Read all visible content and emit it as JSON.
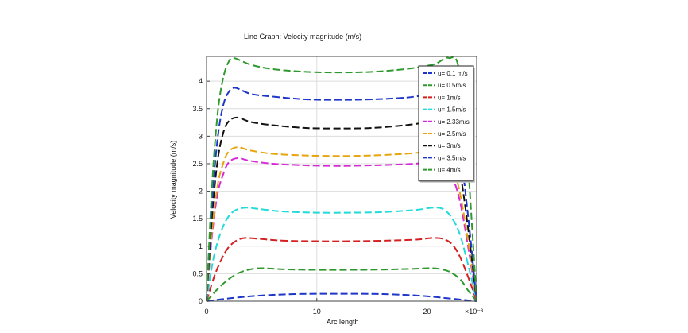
{
  "chart_data": {
    "type": "line",
    "title": "Line Graph: Velocity magnitude (m/s)",
    "xlabel": "Arc length",
    "ylabel": "Velocity magnitude (m/s)",
    "x_ticks": [
      "0",
      "10",
      "20"
    ],
    "x_multiplier": "×10⁻³",
    "y_ticks": [
      "0",
      "0.5",
      "1",
      "1.5",
      "2",
      "2.5",
      "3",
      "3.5",
      "4"
    ],
    "xlim": [
      0,
      0.0245
    ],
    "ylim": [
      0,
      4.45
    ],
    "grid": true,
    "legend_position": "top-right",
    "line_style": "dashed",
    "series": [
      {
        "name": "u= 0.1 m/s",
        "color": "#1f36c8",
        "x": [
          0,
          0.002,
          0.004,
          0.006,
          0.008,
          0.01,
          0.012,
          0.014,
          0.016,
          0.018,
          0.02,
          0.022,
          0.0235,
          0.0245
        ],
        "y": [
          0,
          0.05,
          0.09,
          0.115,
          0.13,
          0.135,
          0.135,
          0.135,
          0.13,
          0.115,
          0.09,
          0.05,
          0.02,
          0
        ]
      },
      {
        "name": "u= 0.5m/s",
        "color": "#2e9a2e",
        "x": [
          0,
          0.001,
          0.002,
          0.003,
          0.004,
          0.005,
          0.007,
          0.01,
          0.013,
          0.016,
          0.019,
          0.02,
          0.021,
          0.022,
          0.023,
          0.0237,
          0.0245
        ],
        "y": [
          0,
          0.22,
          0.4,
          0.52,
          0.58,
          0.6,
          0.58,
          0.57,
          0.57,
          0.575,
          0.59,
          0.6,
          0.59,
          0.54,
          0.4,
          0.2,
          0
        ]
      },
      {
        "name": "u= 1m/s",
        "color": "#d42020",
        "x": [
          0,
          0.0007,
          0.0014,
          0.002,
          0.0027,
          0.0035,
          0.005,
          0.007,
          0.01,
          0.013,
          0.016,
          0.019,
          0.0205,
          0.0215,
          0.0223,
          0.023,
          0.0238,
          0.0245
        ],
        "y": [
          0,
          0.45,
          0.78,
          0.98,
          1.1,
          1.15,
          1.13,
          1.1,
          1.09,
          1.09,
          1.1,
          1.12,
          1.15,
          1.13,
          1.03,
          0.8,
          0.4,
          0
        ]
      },
      {
        "name": "u= 1.5m/s",
        "color": "#22dada",
        "x": [
          0,
          0.0006,
          0.0012,
          0.0018,
          0.0025,
          0.0035,
          0.005,
          0.007,
          0.01,
          0.013,
          0.016,
          0.019,
          0.0205,
          0.0215,
          0.0223,
          0.023,
          0.0238,
          0.0245
        ],
        "y": [
          0,
          0.75,
          1.2,
          1.48,
          1.64,
          1.7,
          1.67,
          1.63,
          1.61,
          1.61,
          1.62,
          1.66,
          1.7,
          1.67,
          1.5,
          1.2,
          0.6,
          0
        ]
      },
      {
        "name": "u= 2.33m/s",
        "color": "#d62ad6",
        "x": [
          0,
          0.0005,
          0.001,
          0.0015,
          0.002,
          0.0028,
          0.004,
          0.006,
          0.009,
          0.012,
          0.015,
          0.018,
          0.0205,
          0.0215,
          0.0223,
          0.023,
          0.0238,
          0.0245
        ],
        "y": [
          0,
          1.2,
          1.95,
          2.3,
          2.52,
          2.6,
          2.55,
          2.5,
          2.47,
          2.46,
          2.47,
          2.49,
          2.52,
          2.5,
          2.25,
          1.8,
          0.9,
          0
        ]
      },
      {
        "name": "u= 2.5m/s",
        "color": "#e8a40e",
        "x": [
          0,
          0.0005,
          0.001,
          0.0015,
          0.002,
          0.0028,
          0.004,
          0.006,
          0.009,
          0.012,
          0.015,
          0.018,
          0.0205,
          0.0215,
          0.0223,
          0.023,
          0.0238,
          0.0245
        ],
        "y": [
          0,
          1.3,
          2.1,
          2.5,
          2.72,
          2.8,
          2.74,
          2.68,
          2.65,
          2.64,
          2.65,
          2.68,
          2.72,
          2.7,
          2.45,
          1.95,
          1.0,
          0
        ]
      },
      {
        "name": "u= 3m/s",
        "color": "#111111",
        "x": [
          0,
          0.0005,
          0.001,
          0.0015,
          0.002,
          0.0028,
          0.004,
          0.006,
          0.009,
          0.012,
          0.015,
          0.018,
          0.0205,
          0.0215,
          0.0223,
          0.023,
          0.0238,
          0.0245
        ],
        "y": [
          0,
          1.55,
          2.55,
          3.05,
          3.27,
          3.34,
          3.26,
          3.2,
          3.15,
          3.14,
          3.15,
          3.2,
          3.26,
          3.24,
          2.95,
          2.35,
          1.2,
          0
        ]
      },
      {
        "name": "u= 3.5m/s",
        "color": "#1f36c8",
        "x": [
          0,
          0.0005,
          0.001,
          0.0015,
          0.002,
          0.0026,
          0.004,
          0.006,
          0.009,
          0.012,
          0.015,
          0.018,
          0.0205,
          0.0215,
          0.0223,
          0.023,
          0.0238,
          0.0245
        ],
        "y": [
          0,
          1.8,
          2.95,
          3.55,
          3.8,
          3.88,
          3.77,
          3.72,
          3.67,
          3.66,
          3.67,
          3.7,
          3.76,
          3.73,
          3.4,
          2.75,
          1.4,
          0
        ]
      },
      {
        "name": "u= 4m/s",
        "color": "#2e9a2e",
        "x": [
          0,
          0.0005,
          0.001,
          0.0015,
          0.002,
          0.0025,
          0.004,
          0.006,
          0.009,
          0.012,
          0.015,
          0.018,
          0.0205,
          0.0215,
          0.022,
          0.0228,
          0.0235,
          0.0245
        ],
        "y": [
          0,
          2.1,
          3.4,
          4.05,
          4.35,
          4.42,
          4.3,
          4.22,
          4.17,
          4.16,
          4.17,
          4.22,
          4.3,
          4.4,
          4.42,
          4.3,
          3.1,
          0
        ]
      }
    ]
  }
}
